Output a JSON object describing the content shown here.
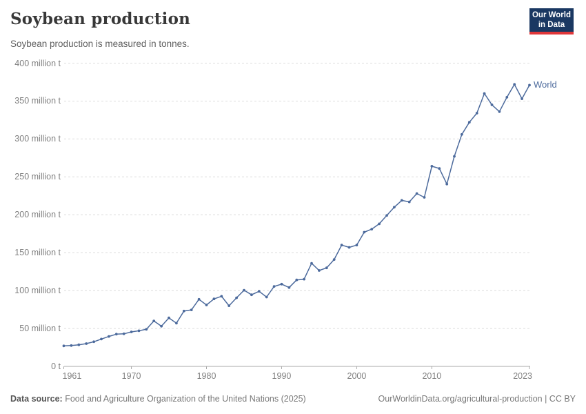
{
  "header": {
    "title": "Soybean production",
    "subtitle": "Soybean production is measured in tonnes."
  },
  "logo": {
    "line1": "Our World",
    "line2": "in Data",
    "bg_color": "#1a3862",
    "accent_color": "#e0373a"
  },
  "chart_data": {
    "type": "line",
    "title": "Soybean production",
    "ylabel": "",
    "xlabel": "",
    "unit": "million tonnes",
    "grid": "horizontal dashed",
    "legend_position": "end-of-line",
    "line_color": "#4c6a9c",
    "ylim": [
      0,
      400
    ],
    "xlim": [
      1961,
      2023
    ],
    "x": [
      1961,
      1962,
      1963,
      1964,
      1965,
      1966,
      1967,
      1968,
      1969,
      1970,
      1971,
      1972,
      1973,
      1974,
      1975,
      1976,
      1977,
      1978,
      1979,
      1980,
      1981,
      1982,
      1983,
      1984,
      1985,
      1986,
      1987,
      1988,
      1989,
      1990,
      1991,
      1992,
      1993,
      1994,
      1995,
      1996,
      1997,
      1998,
      1999,
      2000,
      2001,
      2002,
      2003,
      2004,
      2005,
      2006,
      2007,
      2008,
      2009,
      2010,
      2011,
      2012,
      2013,
      2014,
      2015,
      2016,
      2017,
      2018,
      2019,
      2020,
      2021,
      2022,
      2023
    ],
    "series": [
      {
        "name": "World",
        "color": "#4c6a9c",
        "values": [
          27,
          27.5,
          28.5,
          30,
          32.5,
          36,
          39.5,
          42.5,
          43,
          45.5,
          47,
          49,
          60,
          53,
          64,
          57,
          73,
          74.5,
          88.5,
          81,
          89,
          92.5,
          80,
          90.5,
          100.5,
          94.5,
          99,
          91.5,
          105.5,
          108.5,
          104,
          114,
          115,
          136,
          126.5,
          130,
          141,
          160,
          157,
          160,
          177,
          181,
          188,
          199,
          210,
          219,
          217,
          228,
          223,
          264,
          261,
          240.5,
          277,
          306,
          322,
          334,
          360,
          345,
          336,
          355,
          372,
          353,
          371
        ]
      }
    ],
    "yticks": {
      "values": [
        0,
        50,
        100,
        150,
        200,
        250,
        300,
        350,
        400
      ],
      "labels": [
        "0 t",
        "50 million t",
        "100 million t",
        "150 million t",
        "200 million t",
        "250 million t",
        "300 million t",
        "350 million t",
        "400 million t"
      ]
    },
    "xticks": {
      "values": [
        1961,
        1970,
        1980,
        1990,
        2000,
        2010,
        2023
      ],
      "labels": [
        "1961",
        "1970",
        "1980",
        "1990",
        "2000",
        "2010",
        "2023"
      ]
    }
  },
  "footer": {
    "source_label": "Data source:",
    "source_text": " Food and Agriculture Organization of the United Nations (2025)",
    "credit": "OurWorldinData.org/agricultural-production | CC BY"
  }
}
